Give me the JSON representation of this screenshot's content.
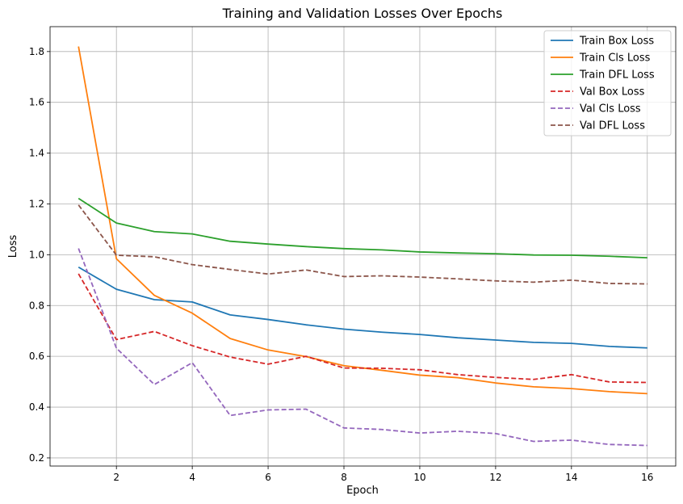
{
  "chart_data": {
    "type": "line",
    "title": "Training and Validation Losses Over Epochs",
    "xlabel": "Epoch",
    "ylabel": "Loss",
    "xlim": [
      0.25,
      16.75
    ],
    "ylim": [
      0.168,
      1.898
    ],
    "xticks": [
      2,
      4,
      6,
      8,
      10,
      12,
      14,
      16
    ],
    "yticks": [
      0.2,
      0.4,
      0.6,
      0.8,
      1.0,
      1.2,
      1.4,
      1.6,
      1.8
    ],
    "grid": true,
    "legend_position": "top-right",
    "x": [
      1,
      2,
      3,
      4,
      5,
      6,
      7,
      8,
      9,
      10,
      11,
      12,
      13,
      14,
      15,
      16
    ],
    "series": [
      {
        "name": "Train Box Loss",
        "color": "#1f77b4",
        "style": "solid",
        "values": [
          0.951,
          0.864,
          0.823,
          0.814,
          0.763,
          0.745,
          0.724,
          0.707,
          0.695,
          0.686,
          0.673,
          0.664,
          0.655,
          0.651,
          0.639,
          0.633
        ]
      },
      {
        "name": "Train Cls Loss",
        "color": "#ff7f0e",
        "style": "solid",
        "values": [
          1.82,
          0.984,
          0.84,
          0.77,
          0.67,
          0.625,
          0.599,
          0.563,
          0.545,
          0.526,
          0.516,
          0.495,
          0.48,
          0.473,
          0.461,
          0.453
        ]
      },
      {
        "name": "Train DFL Loss",
        "color": "#2ca02c",
        "style": "solid",
        "values": [
          1.222,
          1.125,
          1.091,
          1.082,
          1.053,
          1.042,
          1.032,
          1.024,
          1.019,
          1.011,
          1.007,
          1.004,
          0.999,
          0.998,
          0.994,
          0.988
        ]
      },
      {
        "name": "Val Box Loss",
        "color": "#d62728",
        "style": "dashed",
        "values": [
          0.925,
          0.666,
          0.698,
          0.642,
          0.597,
          0.569,
          0.6,
          0.554,
          0.553,
          0.547,
          0.528,
          0.517,
          0.509,
          0.528,
          0.499,
          0.497
        ]
      },
      {
        "name": "Val Cls Loss",
        "color": "#9467bd",
        "style": "dashed",
        "values": [
          1.025,
          0.632,
          0.489,
          0.575,
          0.367,
          0.389,
          0.392,
          0.318,
          0.312,
          0.298,
          0.305,
          0.296,
          0.265,
          0.27,
          0.253,
          0.249
        ]
      },
      {
        "name": "Val DFL Loss",
        "color": "#8c564b",
        "style": "dashed",
        "values": [
          1.196,
          0.998,
          0.992,
          0.961,
          0.942,
          0.924,
          0.94,
          0.914,
          0.917,
          0.912,
          0.905,
          0.897,
          0.892,
          0.9,
          0.887,
          0.885
        ]
      }
    ]
  }
}
